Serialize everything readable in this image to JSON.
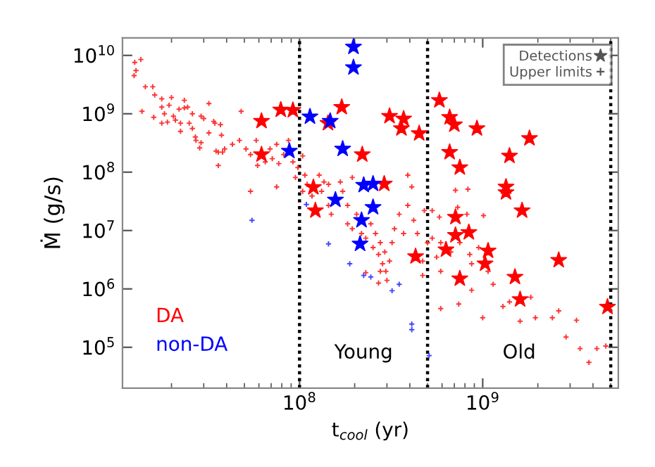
{
  "chart_data": {
    "type": "scatter",
    "xlabel": "t$_{cool}$ (yr)",
    "ylabel": "Ṁ (g/s)",
    "log": "xy",
    "grid": false,
    "legend": "bottom left",
    "xlim": [
      10800000.0,
      5500000000.0
    ],
    "ylim": [
      20000.0,
      20000000000.0
    ],
    "xticks": [
      {
        "value": 100000000.0,
        "label": "10$^{8}$"
      },
      {
        "value": 1000000000.0,
        "label": "10$^{9}$"
      }
    ],
    "yticks": [
      {
        "value": 100000.0,
        "label": "10$^{5}$"
      },
      {
        "value": 1000000.0,
        "label": "10$^{6}$"
      },
      {
        "value": 10000000.0,
        "label": "10$^{7}$"
      },
      {
        "value": 100000000.0,
        "label": "10$^{8}$"
      },
      {
        "value": 1000000000.0,
        "label": "10$^{9}$"
      },
      {
        "value": 10000000000.0,
        "label": "10$^{10}$"
      }
    ],
    "ref_lines": [
      {
        "axis": "x",
        "value": 100000000.0,
        "line_style": "dotted"
      },
      {
        "axis": "x",
        "value": 500000000.0,
        "line_style": "dotted"
      },
      {
        "axis": "x",
        "value": 5000000000.0,
        "line_style": "dotted"
      }
    ],
    "annotations": [
      "Young",
      "Old",
      "Detections",
      "Upper limits"
    ],
    "series": [
      {
        "color": "#ff3333",
        "marker": "cross",
        "x": [
          12600000.0,
          13600000.0,
          12800000.0,
          12500000.0,
          14400000.0,
          13800000.0,
          15800000.0,
          16200000.0,
          17700000.0,
          20000000.0,
          17700000.0,
          19400000.0,
          16000000.0,
          18300000.0,
          20500000.0,
          22000000.0,
          23500000.0,
          23500000.0,
          24500000.0,
          17700000.0,
          19000000.0,
          22400000.0,
          22400000.0,
          21000000.0,
          26000000.0,
          29000000.0,
          30000000.0,
          32000000.0,
          25000000.0,
          26000000.0,
          27000000.0,
          27200000.0,
          29000000.0,
          28500000.0,
          32000000.0,
          34000000.0,
          37000000.0,
          37500000.0,
          35000000.0,
          36000000.0,
          38000000.0,
          34500000.0,
          36000000.0,
          39000000.0,
          43000000.0,
          47000000.0,
          48000000.0,
          51000000.0,
          54000000.0,
          58000000.0,
          59000000.0,
          65000000.0,
          69000000.0,
          71000000.0,
          75000000.0,
          77000000.0,
          75000000.0,
          82000000.0,
          87000000.0,
          92000000.0,
          98000000.0,
          95000000.0,
          104000000.0,
          107000000.0,
          110000000.0,
          128000000.0,
          136000000.0,
          117000000.0,
          132000000.0,
          144000000.0,
          149000000.0,
          167000000.0,
          172000000.0,
          183000000.0,
          194000000.0,
          183000000.0,
          194000000.0,
          205000000.0,
          218000000.0,
          230000000.0,
          245000000.0,
          252000000.0,
          260000000.0,
          270000000.0,
          276000000.0,
          284000000.0,
          292000000.0,
          296000000.0,
          300000000.0,
          310000000.0,
          320000000.0,
          330000000.0,
          350000000.0,
          370000000.0,
          390000000.0,
          390000000.0,
          410000000.0,
          420000000.0,
          440000000.0,
          270000000.0,
          230000000.0,
          480000000.0,
          500000000.0,
          470000000.0,
          144000000.0,
          104000000.0,
          54000000.0,
          276000000.0,
          710000000.0,
          830000000.0,
          530000000.0,
          580000000.0,
          730000000.0,
          820000000.0,
          1010000000.0,
          530000000.0,
          590000000.0,
          670000000.0,
          750000000.0,
          850000000.0,
          950000000.0,
          560000000.0,
          590000000.0,
          870000000.0,
          1070000000.0,
          1140000000.0,
          870000000.0,
          590000000.0,
          740000000.0,
          1000000000.0,
          1290000000.0,
          1400000000.0,
          1600000000.0,
          1830000000.0,
          1940000000.0,
          2400000000.0,
          2600000000.0,
          3250000000.0,
          2850000000.0,
          3400000000.0,
          3800000000.0,
          4200000000.0,
          4700000000.0,
          470000000.0
        ],
        "values": [
          7600000000.0,
          8500000000.0,
          5500000000.0,
          4500000000.0,
          2900000000.0,
          1100000000.0,
          2900000000.0,
          2100000000.0,
          1800000000.0,
          1900000000.0,
          1300000000.0,
          1400000000.0,
          870000000.0,
          1000000000.0,
          910000000.0,
          1200000000.0,
          1700000000.0,
          1260000000.0,
          1300000000.0,
          690000000.0,
          720000000.0,
          690000000.0,
          500000000.0,
          780000000.0,
          1000000000.0,
          910000000.0,
          830000000.0,
          1500000000.0,
          690000000.0,
          560000000.0,
          400000000.0,
          350000000.0,
          320000000.0,
          260000000.0,
          470000000.0,
          740000000.0,
          650000000.0,
          430000000.0,
          230000000.0,
          130000000.0,
          220000000.0,
          690000000.0,
          220000000.0,
          250000000.0,
          300000000.0,
          350000000.0,
          1100000000.0,
          250000000.0,
          200000000.0,
          350000000.0,
          130000000.0,
          150000000.0,
          250000000.0,
          170000000.0,
          300000000.0,
          140000000.0,
          56000000.0,
          200000000.0,
          350000000.0,
          150000000.0,
          120000000.0,
          81000000.0,
          190000000.0,
          89000000.0,
          62000000.0,
          89000000.0,
          68000000.0,
          39000000.0,
          47000000.0,
          27000000.0,
          19000000.0,
          68000000.0,
          47000000.0,
          27000000.0,
          81000000.0,
          13000000.0,
          10700000.0,
          19000000.0,
          8900000.0,
          7400000.0,
          13000000.0,
          5100000.0,
          8900000.0,
          3900000.0,
          6200000.0,
          2700000.0,
          4300000.0,
          2000000.0,
          1400000.0,
          3000000.0,
          6200000.0,
          10700000.0,
          19000000.0,
          8900000.0,
          27000000.0,
          89000000.0,
          56000000.0,
          15000000.0,
          8900000.0,
          1260000.0,
          1900000.0,
          22000000.0,
          6200000.0,
          3000000.0,
          62000000.0,
          47000000.0,
          47000000.0,
          2000000.0,
          49000000.0,
          51000000.0,
          22000000.0,
          17000000.0,
          25000000.0,
          19000000.0,
          18000000.0,
          7400000.0,
          6200000.0,
          4300000.0,
          6200000.0,
          3900000.0,
          5100000.0,
          3500000.0,
          2000000.0,
          2700000.0,
          2000000.0,
          1200000.0,
          950000.0,
          460000.0,
          550000.0,
          320000.0,
          500000.0,
          600000.0,
          280000.0,
          720000.0,
          320000.0,
          320000.0,
          420000.0,
          290000.0,
          150000.0,
          95000.0,
          55000.0,
          95000.0,
          105000.0,
          1700000.0
        ]
      },
      {
        "color": "#4444ff",
        "marker": "cross",
        "x": [
          55000000.0,
          109000000.0,
          144000000.0,
          188000000.0,
          224000000.0,
          245000000.0,
          320000000.0,
          350000000.0,
          410000000.0,
          410000000.0,
          510000000.0
        ],
        "values": [
          15000000.0,
          28000000.0,
          5900000.0,
          2700000.0,
          1700000.0,
          1600000.0,
          930000.0,
          1200000.0,
          250000.0,
          200000.0,
          72000.0
        ]
      },
      {
        "name": "DA",
        "color": "#ff0000",
        "marker": "star",
        "x": [
          62000000.0,
          79000000.0,
          92000000.0,
          62000000.0,
          170000000.0,
          143000000.0,
          310000000.0,
          370000000.0,
          360000000.0,
          450000000.0,
          220000000.0,
          119000000.0,
          122000000.0,
          290000000.0,
          430000000.0,
          580000000.0,
          660000000.0,
          700000000.0,
          930000000.0,
          1800000000.0,
          660000000.0,
          750000000.0,
          1400000000.0,
          1340000000.0,
          1340000000.0,
          1640000000.0,
          710000000.0,
          710000000.0,
          840000000.0,
          630000000.0,
          1070000000.0,
          1030000000.0,
          750000000.0,
          1500000000.0,
          2600000000.0,
          1600000000.0,
          4800000000.0
        ],
        "values": [
          750000000.0,
          1170000000.0,
          1150000000.0,
          200000000.0,
          1300000000.0,
          690000000.0,
          910000000.0,
          820000000.0,
          560000000.0,
          460000000.0,
          200000000.0,
          55000000.0,
          22000000.0,
          63000000.0,
          3600000.0,
          1700000000.0,
          870000000.0,
          650000000.0,
          560000000.0,
          380000000.0,
          220000000.0,
          120000000.0,
          190000000.0,
          56000000.0,
          45000000.0,
          22000000.0,
          17000000.0,
          8300000.0,
          9300000.0,
          4700000.0,
          4500000.0,
          2700000.0,
          1500000.0,
          1600000.0,
          3100000.0,
          660000.0,
          490000.0
        ]
      },
      {
        "name": "non-DA",
        "color": "#0000ff",
        "marker": "star",
        "x": [
          197000000.0,
          197000000.0,
          114000000.0,
          147000000.0,
          88000000.0,
          172000000.0,
          224000000.0,
          252000000.0,
          157000000.0,
          252000000.0,
          218000000.0,
          214000000.0
        ],
        "values": [
          14000000000.0,
          6200000000.0,
          890000000.0,
          750000000.0,
          230000000.0,
          250000000.0,
          60000000.0,
          63000000.0,
          33500000.0,
          25000000.0,
          15000000.0,
          5900000.0
        ]
      }
    ]
  }
}
